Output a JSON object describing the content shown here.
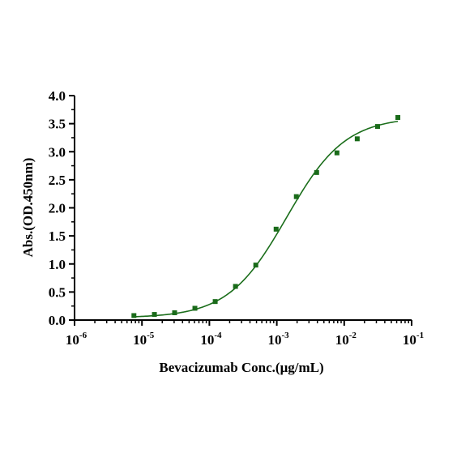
{
  "chart_data": {
    "type": "scatter",
    "title": "",
    "xlabel": "Bevacizumab Conc.(μg/mL)",
    "ylabel": "Abs.(OD.450nm)",
    "x_scale": "log",
    "xlim": [
      1e-06,
      0.1
    ],
    "ylim": [
      0,
      4.0
    ],
    "x_ticks": [
      {
        "base": "10",
        "exp": "-6"
      },
      {
        "base": "10",
        "exp": "-5"
      },
      {
        "base": "10",
        "exp": "-4"
      },
      {
        "base": "10",
        "exp": "-3"
      },
      {
        "base": "10",
        "exp": "-2"
      },
      {
        "base": "10",
        "exp": "-1"
      }
    ],
    "y_ticks": [
      "0.0",
      "0.5",
      "1.0",
      "1.5",
      "2.0",
      "2.5",
      "3.0",
      "3.5",
      "4.0"
    ],
    "grid": false,
    "legend": "none",
    "point_color": "#1a6b1a",
    "line_color": "#1b6e1b",
    "series": [
      {
        "x": [
          7.6e-06,
          1.53e-05,
          3.05e-05,
          6.1e-05,
          0.000122,
          0.000244,
          0.000488,
          0.000977,
          0.00195,
          0.0039,
          0.0078,
          0.0156,
          0.03125,
          0.0625
        ],
        "y": [
          0.08,
          0.1,
          0.13,
          0.21,
          0.33,
          0.6,
          0.98,
          1.62,
          2.2,
          2.63,
          2.98,
          3.23,
          3.45,
          3.61
        ]
      }
    ],
    "fit": {
      "model": "4PL",
      "bottom": 0.04,
      "top": 3.62,
      "ec50": 0.0014,
      "hill": 1.0,
      "x_range": [
        7.6e-06,
        0.0625
      ]
    }
  }
}
